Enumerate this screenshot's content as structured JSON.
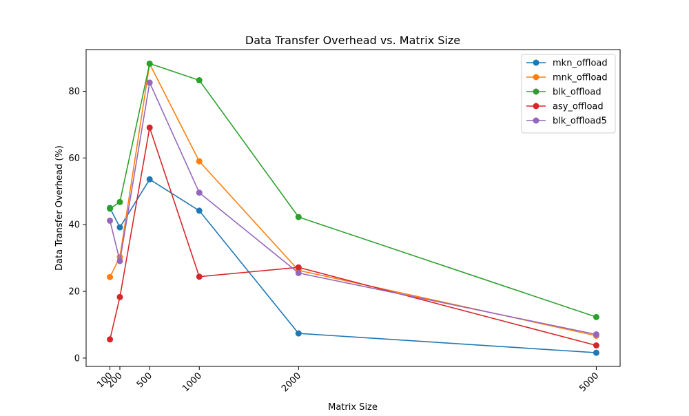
{
  "chart_data": {
    "type": "line",
    "title": "Data Transfer Overhead vs. Matrix Size",
    "xlabel": "Matrix Size",
    "ylabel": "Data Transfer Overhead (%)",
    "x": [
      100,
      200,
      500,
      1000,
      2000,
      5000
    ],
    "x_ticks": [
      "100",
      "200",
      "500",
      "1000",
      "2000",
      "5000"
    ],
    "y_ticks": [
      "0",
      "20",
      "40",
      "60",
      "80"
    ],
    "xlim": [
      -140,
      5240
    ],
    "ylim": [
      -2.5,
      92.5
    ],
    "grid": false,
    "legend": "top-right",
    "series": [
      {
        "name": "mkn_offload",
        "color": "#1f77b4",
        "values": [
          45.0,
          39.2,
          53.6,
          44.2,
          7.4,
          1.6
        ]
      },
      {
        "name": "mnk_offload",
        "color": "#ff7f0e",
        "values": [
          24.3,
          30.3,
          88.2,
          59.0,
          26.3,
          6.7
        ]
      },
      {
        "name": "blk_offload",
        "color": "#2ca02c",
        "values": [
          44.8,
          46.8,
          88.3,
          83.3,
          42.3,
          12.3
        ]
      },
      {
        "name": "asy_offload",
        "color": "#d62728",
        "values": [
          5.6,
          18.3,
          69.1,
          24.4,
          27.2,
          3.8
        ]
      },
      {
        "name": "blk_offload5",
        "color": "#9467bd",
        "values": [
          41.2,
          29.1,
          82.6,
          49.6,
          25.5,
          7.1
        ]
      }
    ]
  }
}
